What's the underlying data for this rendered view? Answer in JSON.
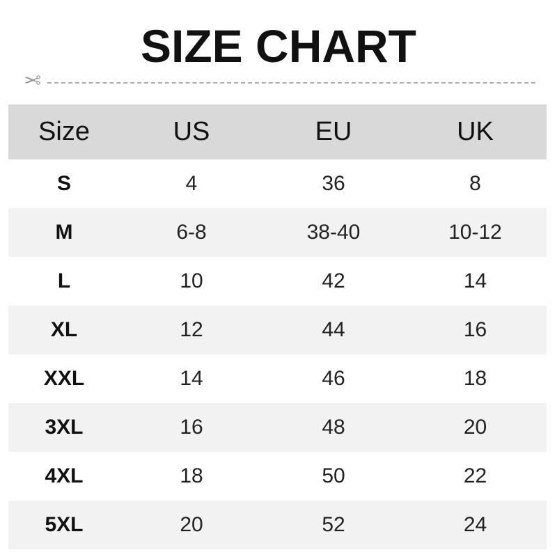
{
  "title": "SIZE CHART",
  "icons": {
    "cut_line": "scissors-icon"
  },
  "colors": {
    "header_bg": "#d9d9d9",
    "stripe_bg": "#f2f2f2"
  },
  "headers": [
    "Size",
    "US",
    "EU",
    "UK"
  ],
  "rows": [
    [
      "S",
      "4",
      "36",
      "8"
    ],
    [
      "M",
      "6-8",
      "38-40",
      "10-12"
    ],
    [
      "L",
      "10",
      "42",
      "14"
    ],
    [
      "XL",
      "12",
      "44",
      "16"
    ],
    [
      "XXL",
      "14",
      "46",
      "18"
    ],
    [
      "3XL",
      "16",
      "48",
      "20"
    ],
    [
      "4XL",
      "18",
      "50",
      "22"
    ],
    [
      "5XL",
      "20",
      "52",
      "24"
    ]
  ]
}
